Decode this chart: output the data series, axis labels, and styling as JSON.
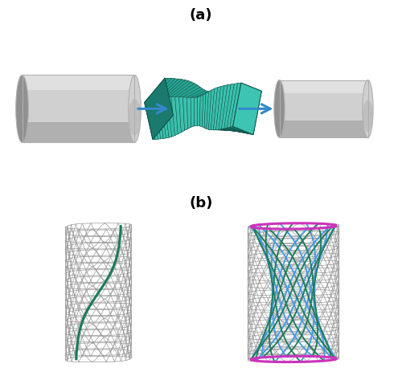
{
  "fig_width": 5.0,
  "fig_height": 4.73,
  "bg_color": "#ffffff",
  "label_a": "(a)",
  "label_b": "(b)",
  "teal_color": "#2aaa96",
  "teal_light": "#3dc4b2",
  "teal_dark": "#1a7a6e",
  "teal_shade": "#156055",
  "gray_color": "#d0d0d0",
  "gray_mid": "#b0b0b0",
  "gray_dark": "#909090",
  "arrow_color": "#3388cc",
  "wire_color": "#909090",
  "green_fiber": "#1a7a5a",
  "blue_tower": "#4499dd",
  "magenta_ring": "#cc33bb"
}
